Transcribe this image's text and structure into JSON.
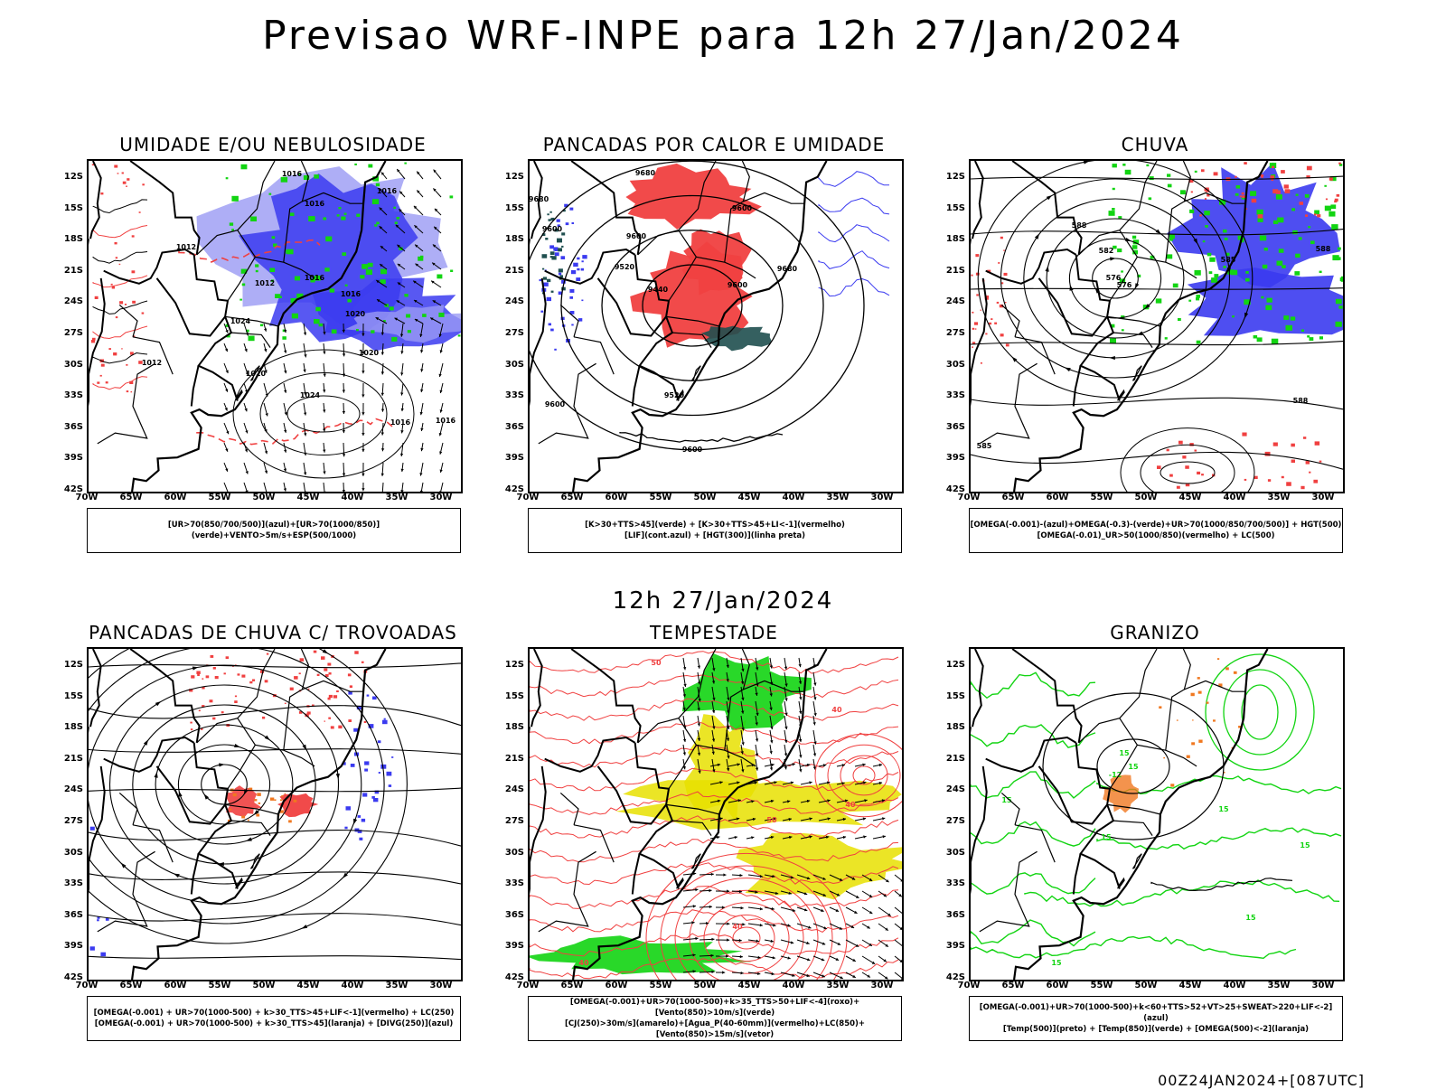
{
  "main_title": "Previsao WRF-INPE  para 12h 27/Jan/2024",
  "mid_title": "12h 27/Jan/2024",
  "footer": "00Z24JAN2024+[087UTC]",
  "y_ticks": [
    "12S",
    "15S",
    "18S",
    "21S",
    "24S",
    "27S",
    "30S",
    "33S",
    "36S",
    "39S",
    "42S"
  ],
  "x_ticks": [
    "70W",
    "65W",
    "60W",
    "55W",
    "50W",
    "45W",
    "40W",
    "35W",
    "30W"
  ],
  "colors": {
    "blue": "#3b3bf0",
    "light_blue": "#9a9af4",
    "green": "#12d412",
    "red": "#f04040",
    "yellow": "#e8e000",
    "orange": "#f07820",
    "dark_teal": "#1f4f4f"
  },
  "panels": [
    {
      "title": "UMIDADE E/OU NEBULOSIDADE",
      "legend": [
        "[UR>70(850/700/500)](azul)+[UR>70(1000/850)](verde)+VENTO>5m/s+ESP(500/1000)"
      ],
      "labels": [
        "1016",
        "1016",
        "1016",
        "1012",
        "1012",
        "1016",
        "1016",
        "1020",
        "1024",
        "1020",
        "1024",
        "1016",
        "1016",
        "1012",
        "1020"
      ]
    },
    {
      "title": "PANCADAS POR CALOR E UMIDADE",
      "legend": [
        "[K>30+TTS>45](verde) + [K>30+TTS>45+LI<-1](vermelho)",
        "[LIF](cont.azul) + [HGT(300)](linha preta)"
      ],
      "labels": [
        "9680",
        "9680",
        "9600",
        "9600",
        "9520",
        "9440",
        "9600",
        "9680",
        "9520",
        "9600",
        "9600",
        "9600"
      ]
    },
    {
      "title": "CHUVA",
      "legend": [
        "[OMEGA(-0.001)-(azul)+OMEGA(-0.3)-(verde)+UR>70(1000/850/700/500)] + HGT(500)",
        "[OMEGA(-0.01)_UR>50(1000/850)(vermelho) + LC(500)"
      ],
      "labels": [
        "588",
        "582",
        "576",
        "576",
        "585",
        "588",
        "588",
        "585"
      ]
    },
    {
      "title": "PANCADAS DE CHUVA C/ TROVOADAS",
      "legend": [
        "[OMEGA(-0.001) + UR>70(1000-500) + k>30_TTS>45+LIF<-1](vermelho) + LC(250)",
        "[OMEGA(-0.001) + UR>70(1000-500) + k>30_TTS>45](laranja) + [DIVG(250)](azul)"
      ],
      "labels": []
    },
    {
      "title": "TEMPESTADE",
      "legend": [
        "[OMEGA(-0.001)+UR>70(1000-500)+k>35_TTS>50+LIF<-4](roxo)+[Vento(850)>10m/s](verde)",
        "[CJ(250)>30m/s](amarelo)+[Agua_P(40-60mm)](vermelho)+LC(850)+[Vento(850)>15m/s](vetor)"
      ],
      "labels": [
        "50",
        "40",
        "40",
        "40",
        "50",
        "40"
      ]
    },
    {
      "title": "GRANIZO",
      "legend": [
        "[OMEGA(-0.001)+UR>70(1000-500)+k<60+TTS>52+VT>25+SWEAT>220+LIF<-2](azul)",
        "[Temp(500)](preto) + [Temp(850)](verde) + [OMEGA(500)<-2](laranja)"
      ],
      "labels": [
        "-12",
        "15",
        "15",
        "15",
        "15",
        "15",
        "15",
        "15",
        "15"
      ]
    }
  ]
}
